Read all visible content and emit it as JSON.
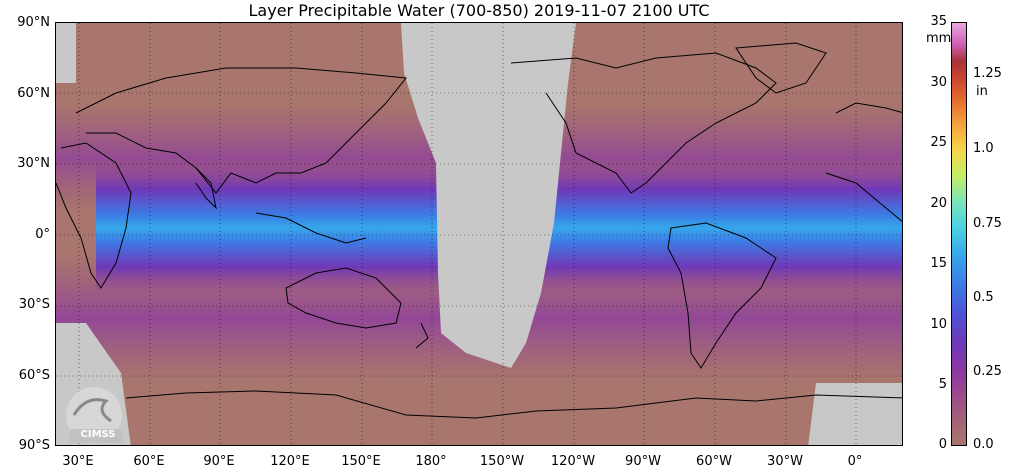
{
  "title": "Layer Precipitable Water (700-850)  2019-11-07 2100 UTC",
  "map": {
    "lat_labels": [
      "90°N",
      "60°N",
      "30°N",
      "0°",
      "30°S",
      "60°S",
      "90°S"
    ],
    "lon_labels": [
      "30°E",
      "60°E",
      "90°E",
      "120°E",
      "150°E",
      "180°",
      "150°W",
      "120°W",
      "90°W",
      "60°W",
      "30°W",
      "0°"
    ],
    "missing_data_color": "#c8c8c8",
    "dry_color": "#a8766c"
  },
  "colorbar": {
    "left_unit": "mm",
    "right_unit": "in",
    "mm_ticks": [
      "35",
      "30",
      "25",
      "20",
      "15",
      "10",
      "5",
      "0"
    ],
    "in_ticks": [
      "1.25",
      "1.0",
      "0.75",
      "0.5",
      "0.25",
      "0.0"
    ],
    "range_mm": [
      0,
      35
    ]
  },
  "logo": {
    "text": "CIMSS"
  }
}
